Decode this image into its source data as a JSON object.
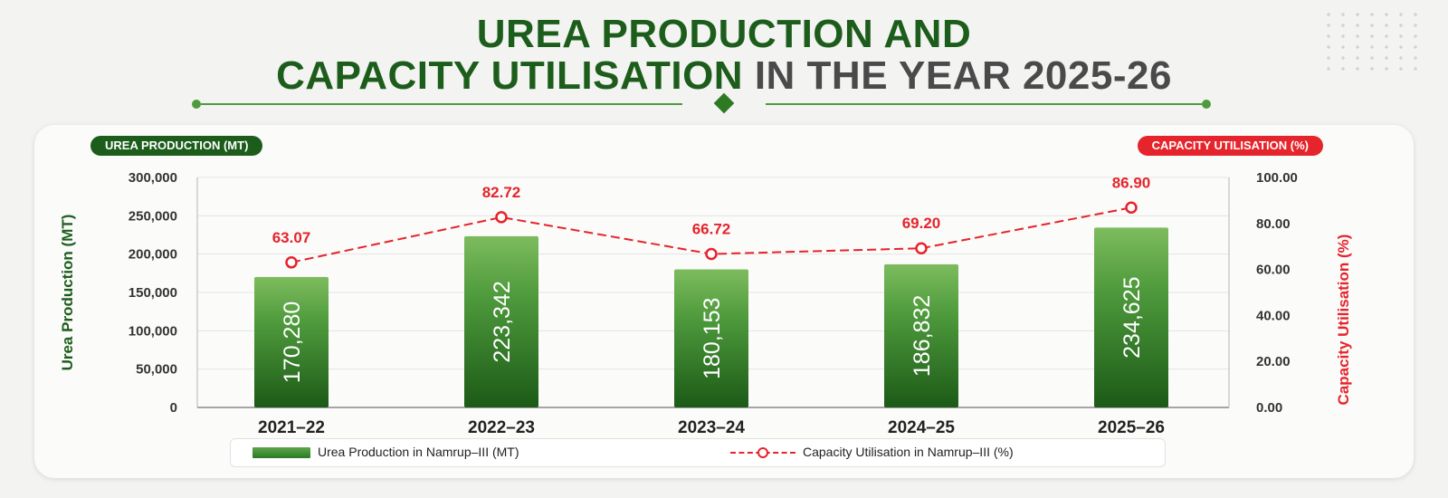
{
  "header": {
    "title_line1": "UREA PRODUCTION AND",
    "title_line2_main": "CAPACITY UTILISATION",
    "title_line2_rest": "IN THE YEAR 2025-26"
  },
  "colors": {
    "green": "#1d5d1c",
    "bar_top": "#7dbc5e",
    "bar_bottom": "#1c5a17",
    "red": "#e5242b"
  },
  "chart_data": {
    "type": "bar",
    "categories": [
      "2021–22",
      "2022–23",
      "2023–24",
      "2024–25",
      "2025–26"
    ],
    "series": [
      {
        "name": "Urea Production in Namrup–III (MT)",
        "type": "bar",
        "axis": "left",
        "values": [
          170280,
          223342,
          180153,
          186832,
          234625
        ],
        "value_labels": [
          "170,280",
          "223,342",
          "180,153",
          "186,832",
          "234,625"
        ]
      },
      {
        "name": "Capacity Utilisation in Namrup–III (%)",
        "type": "line",
        "axis": "right",
        "values": [
          63.07,
          82.72,
          66.72,
          69.2,
          86.9
        ],
        "value_labels": [
          "63.07",
          "82.72",
          "66.72",
          "69.20",
          "86.90"
        ]
      }
    ],
    "left_axis": {
      "label": "Urea Production (MT)",
      "pill": "UREA PRODUCTION (MT)",
      "range": [
        0,
        300000
      ],
      "ticks": [
        0,
        50000,
        100000,
        150000,
        200000,
        250000,
        300000
      ],
      "tick_labels": [
        "0",
        "50,000",
        "100,000",
        "150,000",
        "200,000",
        "250,000",
        "300,000"
      ]
    },
    "right_axis": {
      "label": "Capacity Utilisation (%)",
      "pill": "CAPACITY UTILISATION (%)",
      "range": [
        0,
        100
      ],
      "ticks": [
        0,
        20,
        40,
        60,
        80,
        100
      ],
      "tick_labels": [
        "0.00",
        "20.00",
        "40.00",
        "60.00",
        "80.00",
        "100.00"
      ]
    },
    "grid": true,
    "legend": "bottom"
  }
}
